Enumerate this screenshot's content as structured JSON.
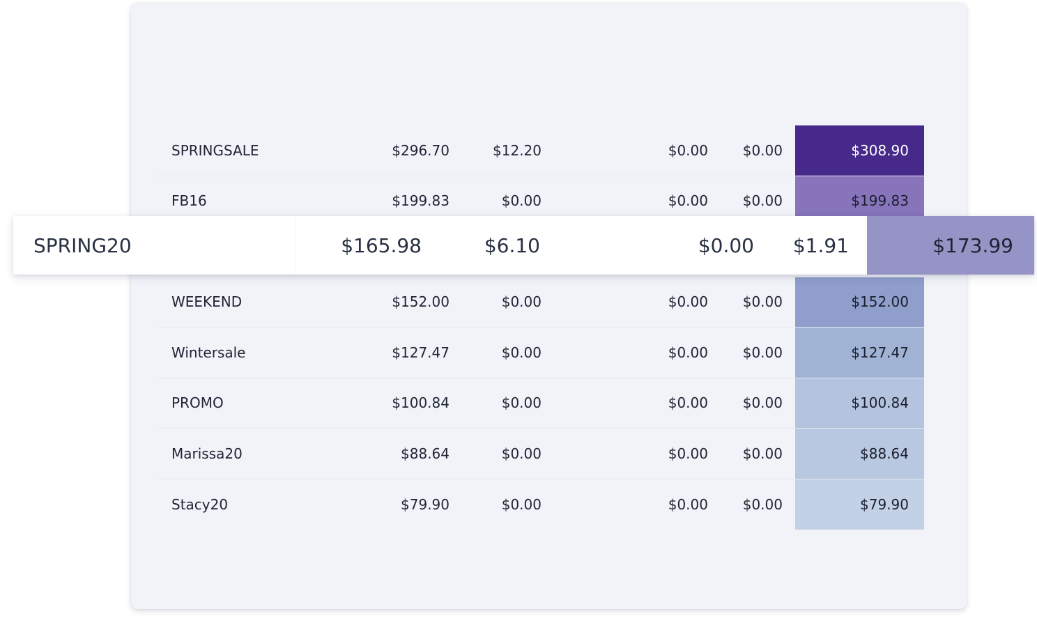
{
  "rows": [
    {
      "code": "SPRINGSALE",
      "gross": "$296.70",
      "tax": "$12.20",
      "shipping": "$0.00",
      "fees": "$0.00",
      "total": "$308.90",
      "total_bg": "#47298a",
      "total_fg": "#ffffff"
    },
    {
      "code": "FB16",
      "gross": "$199.83",
      "tax": "$0.00",
      "shipping": "$0.00",
      "fees": "$0.00",
      "total": "$199.83",
      "total_bg": "#8774bb",
      "total_fg": "#1b1f2f"
    },
    {
      "code": "WEEKEND",
      "gross": "$152.00",
      "tax": "$0.00",
      "shipping": "$0.00",
      "fees": "$0.00",
      "total": "$152.00",
      "total_bg": "#8f9ecb",
      "total_fg": "#1b1f2f"
    },
    {
      "code": "Wintersale",
      "gross": "$127.47",
      "tax": "$0.00",
      "shipping": "$0.00",
      "fees": "$0.00",
      "total": "$127.47",
      "total_bg": "#a1b3d4",
      "total_fg": "#1b1f2f"
    },
    {
      "code": "PROMO",
      "gross": "$100.84",
      "tax": "$0.00",
      "shipping": "$0.00",
      "fees": "$0.00",
      "total": "$100.84",
      "total_bg": "#b4c4de",
      "total_fg": "#1b1f2f"
    },
    {
      "code": "Marissa20",
      "gross": "$88.64",
      "tax": "$0.00",
      "shipping": "$0.00",
      "fees": "$0.00",
      "total": "$88.64",
      "total_bg": "#b8c8e0",
      "total_fg": "#1b1f2f"
    },
    {
      "code": "Stacy20",
      "gross": "$79.90",
      "tax": "$0.00",
      "shipping": "$0.00",
      "fees": "$0.00",
      "total": "$79.90",
      "total_bg": "#c3d1e6",
      "total_fg": "#1b1f2f"
    }
  ],
  "highlighted_row": {
    "code": "SPRING20",
    "gross": "$165.98",
    "tax": "$6.10",
    "shipping": "$0.00",
    "fees": "$1.91",
    "total": "$173.99",
    "total_bg": "#9694c6",
    "total_fg": "#1d2336"
  },
  "colors": {
    "page_background": "#ffffff",
    "panel_background": "#f1f3f9",
    "row_divider": "#e6e9f1",
    "text": "#1f2433"
  }
}
